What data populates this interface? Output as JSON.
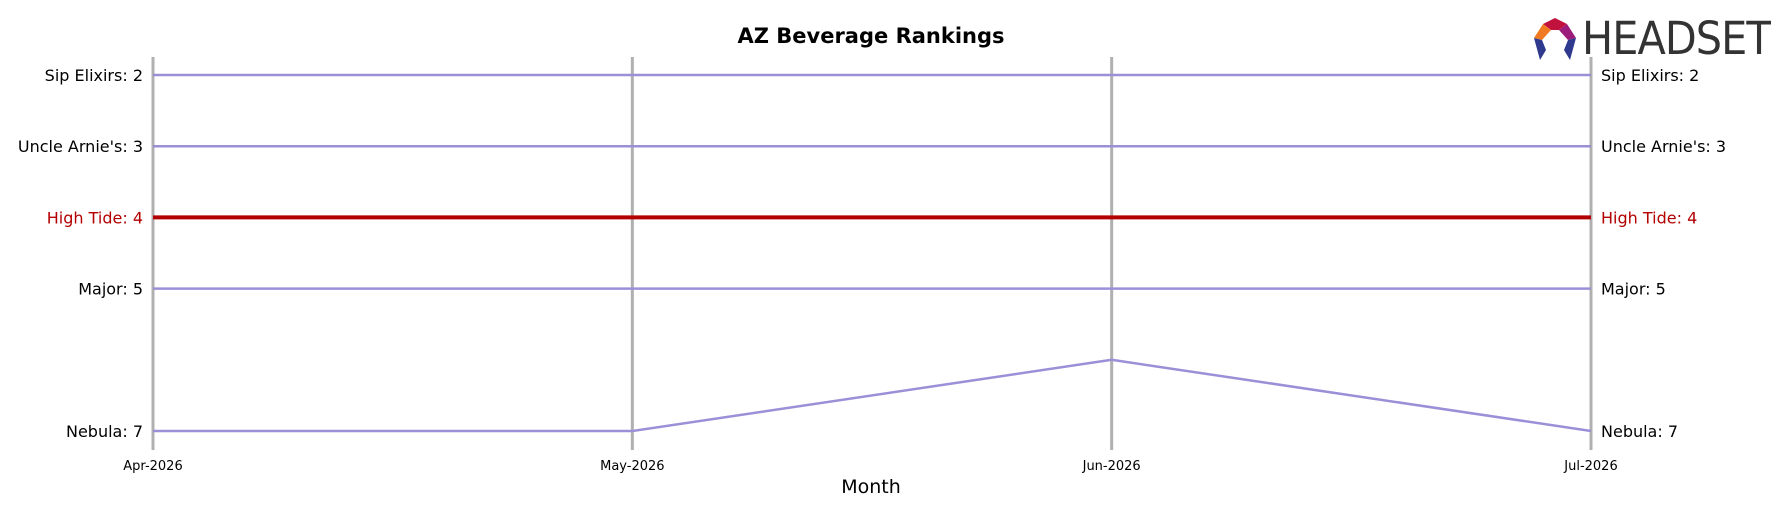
{
  "brand": {
    "name": "HEADSET"
  },
  "chart_data": {
    "type": "line",
    "title": "AZ Beverage Rankings",
    "xlabel": "Month",
    "ylabel": "",
    "x": [
      "Apr-2026",
      "May-2026",
      "Jun-2026",
      "Jul-2026"
    ],
    "ylim": [
      1.75,
      7.2
    ],
    "y_inverted": true,
    "grid": "vertical",
    "highlight_color": "#b30000",
    "series_color": "#9b8fd8",
    "series": [
      {
        "name": "Sip Elixirs",
        "values": [
          2,
          2,
          2,
          2
        ],
        "highlight": false,
        "start_label": "Sip Elixirs: 2",
        "end_label": "Sip Elixirs: 2"
      },
      {
        "name": "Uncle Arnie's",
        "values": [
          3,
          3,
          3,
          3
        ],
        "highlight": false,
        "start_label": "Uncle Arnie's: 3",
        "end_label": "Uncle Arnie's: 3"
      },
      {
        "name": "High Tide",
        "values": [
          4,
          4,
          4,
          4
        ],
        "highlight": true,
        "start_label": "High Tide: 4",
        "end_label": "High Tide: 4"
      },
      {
        "name": "Major",
        "values": [
          5,
          5,
          5,
          5
        ],
        "highlight": false,
        "start_label": "Major: 5",
        "end_label": "Major: 5"
      },
      {
        "name": "Nebula",
        "values": [
          7,
          7,
          6,
          7
        ],
        "highlight": false,
        "start_label": "Nebula: 7",
        "end_label": "Nebula: 7"
      }
    ]
  }
}
